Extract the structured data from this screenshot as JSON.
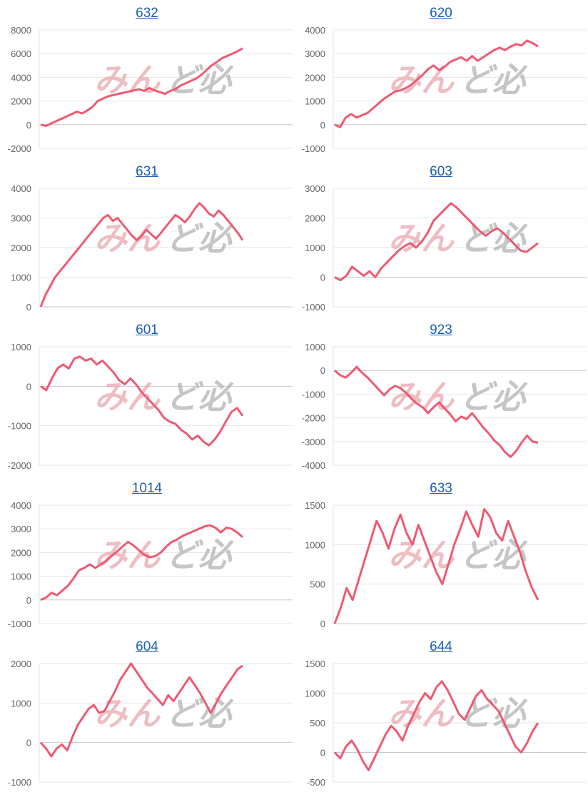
{
  "colors": {
    "line": "#ee5a72",
    "grid": "#e6e6e6",
    "axis": "#c8c8c8",
    "title": "#1a5fb4"
  },
  "watermark": {
    "part1": "みん",
    "part2": "ど必"
  },
  "chart_data": [
    {
      "type": "line",
      "title": "632",
      "ylim": [
        -2000,
        8000
      ],
      "yticks": [
        -2000,
        0,
        2000,
        4000,
        6000,
        8000
      ],
      "series": [
        {
          "values": [
            0,
            -100,
            100,
            300,
            500,
            700,
            900,
            1100,
            950,
            1200,
            1500,
            2000,
            2200,
            2400,
            2500,
            2600,
            2700,
            2800,
            2900,
            3000,
            2850,
            3100,
            2900,
            2750,
            2600,
            2850,
            3000,
            3300,
            3500,
            3700,
            3900,
            4200,
            4600,
            5000,
            5300,
            5600,
            5800,
            6000,
            6200,
            6450
          ]
        }
      ]
    },
    {
      "type": "line",
      "title": "620",
      "ylim": [
        -1000,
        4000
      ],
      "yticks": [
        -1000,
        0,
        1000,
        2000,
        3000,
        4000
      ],
      "series": [
        {
          "values": [
            0,
            -100,
            300,
            450,
            300,
            400,
            500,
            700,
            900,
            1100,
            1250,
            1400,
            1450,
            1550,
            1700,
            1900,
            2100,
            2350,
            2500,
            2300,
            2450,
            2650,
            2750,
            2850,
            2700,
            2900,
            2700,
            2850,
            3000,
            3150,
            3250,
            3150,
            3300,
            3400,
            3350,
            3550,
            3450,
            3300
          ]
        }
      ]
    },
    {
      "type": "line",
      "title": "631",
      "ylim": [
        0,
        4000
      ],
      "yticks": [
        0,
        1000,
        2000,
        3000,
        4000
      ],
      "series": [
        {
          "values": [
            0,
            400,
            700,
            1000,
            1200,
            1400,
            1600,
            1800,
            2000,
            2200,
            2400,
            2600,
            2800,
            3000,
            3100,
            2900,
            3000,
            2800,
            2600,
            2400,
            2250,
            2400,
            2600,
            2450,
            2300,
            2500,
            2700,
            2900,
            3100,
            3000,
            2850,
            3050,
            3300,
            3500,
            3350,
            3150,
            3050,
            3250,
            3100,
            2900,
            2700,
            2500,
            2250
          ]
        }
      ]
    },
    {
      "type": "line",
      "title": "603",
      "ylim": [
        -1000,
        3000
      ],
      "yticks": [
        -1000,
        0,
        1000,
        2000,
        3000
      ],
      "series": [
        {
          "values": [
            0,
            -100,
            50,
            350,
            200,
            50,
            200,
            0,
            300,
            500,
            700,
            900,
            1050,
            1150,
            1000,
            1200,
            1500,
            1900,
            2100,
            2300,
            2500,
            2350,
            2150,
            1950,
            1750,
            1550,
            1400,
            1550,
            1650,
            1500,
            1300,
            1100,
            900,
            850,
            1000,
            1150
          ]
        }
      ]
    },
    {
      "type": "line",
      "title": "601",
      "ylim": [
        -2000,
        1000
      ],
      "yticks": [
        -2000,
        -1000,
        0,
        1000
      ],
      "series": [
        {
          "values": [
            0,
            -100,
            200,
            450,
            550,
            450,
            700,
            750,
            650,
            700,
            550,
            650,
            500,
            350,
            150,
            50,
            200,
            50,
            -150,
            -300,
            -450,
            -600,
            -800,
            -900,
            -950,
            -1100,
            -1200,
            -1350,
            -1250,
            -1400,
            -1500,
            -1350,
            -1150,
            -900,
            -650,
            -550,
            -750
          ]
        }
      ]
    },
    {
      "type": "line",
      "title": "923",
      "ylim": [
        -4000,
        1000
      ],
      "yticks": [
        -4000,
        -3000,
        -2000,
        -1000,
        0,
        1000
      ],
      "series": [
        {
          "values": [
            0,
            -200,
            -300,
            -100,
            150,
            -100,
            -300,
            -550,
            -800,
            -1050,
            -800,
            -650,
            -750,
            -950,
            -1200,
            -1400,
            -1550,
            -1800,
            -1550,
            -1350,
            -1600,
            -1850,
            -2150,
            -1950,
            -2050,
            -1800,
            -2100,
            -2400,
            -2650,
            -2950,
            -3150,
            -3450,
            -3650,
            -3400,
            -3050,
            -2750,
            -3000,
            -3050
          ]
        }
      ]
    },
    {
      "type": "line",
      "title": "1014",
      "ylim": [
        -1000,
        4000
      ],
      "yticks": [
        -1000,
        0,
        1000,
        2000,
        3000,
        4000
      ],
      "series": [
        {
          "values": [
            0,
            100,
            300,
            200,
            400,
            600,
            900,
            1250,
            1350,
            1500,
            1350,
            1500,
            1650,
            1850,
            2050,
            2250,
            2450,
            2300,
            2100,
            1900,
            1800,
            1850,
            2000,
            2250,
            2450,
            2550,
            2700,
            2800,
            2900,
            3000,
            3100,
            3150,
            3050,
            2850,
            3050,
            3000,
            2850,
            2650
          ]
        }
      ]
    },
    {
      "type": "line",
      "title": "633",
      "ylim": [
        0,
        1500
      ],
      "yticks": [
        0,
        500,
        1000,
        1500
      ],
      "series": [
        {
          "values": [
            0,
            200,
            450,
            300,
            550,
            800,
            1050,
            1300,
            1150,
            950,
            1200,
            1380,
            1150,
            1000,
            1250,
            1050,
            850,
            650,
            500,
            750,
            1000,
            1200,
            1420,
            1250,
            1100,
            1450,
            1350,
            1150,
            1050,
            1300,
            1100,
            900,
            650,
            450,
            300
          ]
        }
      ]
    },
    {
      "type": "line",
      "title": "604",
      "ylim": [
        -1000,
        2000
      ],
      "yticks": [
        -1000,
        0,
        1000,
        2000
      ],
      "series": [
        {
          "values": [
            0,
            -150,
            -350,
            -150,
            -50,
            -200,
            150,
            450,
            650,
            850,
            950,
            750,
            800,
            1050,
            1300,
            1600,
            1800,
            2000,
            1800,
            1600,
            1400,
            1250,
            1100,
            950,
            1200,
            1050,
            1250,
            1450,
            1650,
            1450,
            1250,
            1000,
            750,
            1000,
            1250,
            1450,
            1650,
            1850,
            1950
          ]
        }
      ]
    },
    {
      "type": "line",
      "title": "644",
      "ylim": [
        -500,
        1500
      ],
      "yticks": [
        -500,
        0,
        500,
        1000,
        1500
      ],
      "series": [
        {
          "values": [
            0,
            -100,
            100,
            200,
            50,
            -150,
            -300,
            -100,
            100,
            300,
            450,
            350,
            200,
            450,
            650,
            850,
            1000,
            900,
            1100,
            1200,
            1050,
            850,
            650,
            550,
            750,
            950,
            1050,
            900,
            800,
            700,
            500,
            300,
            100,
            0,
            150,
            350,
            500
          ]
        }
      ]
    }
  ]
}
